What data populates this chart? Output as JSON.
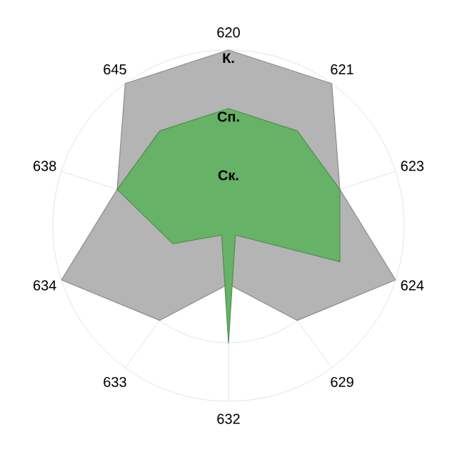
{
  "chart_data": {
    "type": "radar",
    "categories": [
      "620",
      "621",
      "623",
      "624",
      "629",
      "632",
      "633",
      "634",
      "638",
      "645"
    ],
    "ylim": [
      0,
      3
    ],
    "yticks": [
      {
        "value": 1,
        "label": "Ск."
      },
      {
        "value": 2,
        "label": "Сп."
      },
      {
        "value": 3,
        "label": "К."
      }
    ],
    "grid": true,
    "series": [
      {
        "color": "#b4b4b4",
        "values": [
          3,
          3,
          2,
          3,
          2,
          1,
          2,
          3,
          2,
          3
        ]
      },
      {
        "color": "#66b266",
        "values": [
          2,
          2,
          2,
          2,
          0.2,
          2,
          0.2,
          1,
          2,
          2
        ]
      }
    ]
  }
}
